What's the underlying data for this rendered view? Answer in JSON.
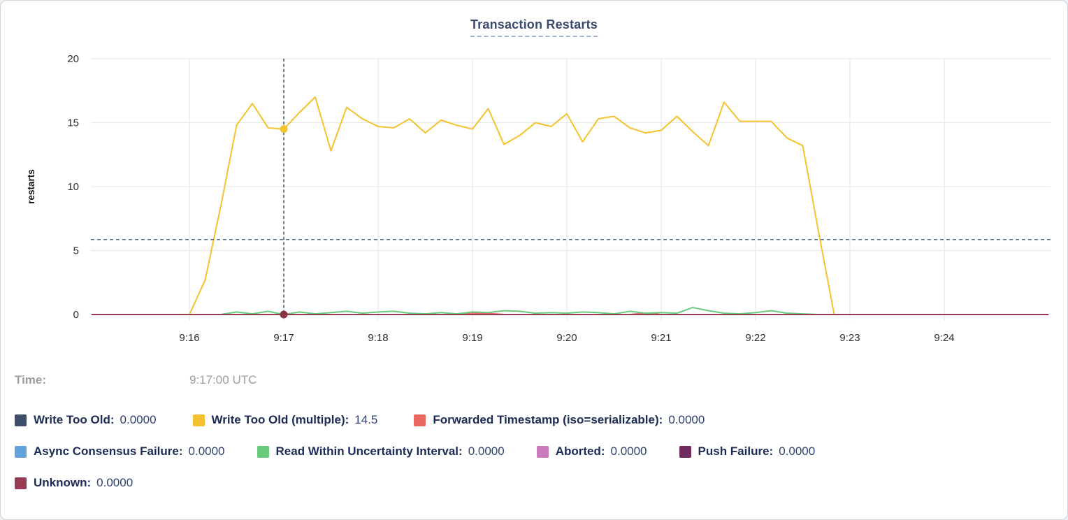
{
  "title": "Transaction Restarts",
  "chart_data": {
    "type": "line",
    "title": "Transaction Restarts",
    "xlabel": "",
    "ylabel": "restarts",
    "ylim": [
      0,
      20
    ],
    "y_ticks": [
      0,
      5,
      10,
      15,
      20
    ],
    "x_ticks": [
      "9:16",
      "9:17",
      "9:18",
      "9:19",
      "9:20",
      "9:21",
      "9:22",
      "9:23",
      "9:24"
    ],
    "x_range": [
      "9:14:58",
      "9:25:06"
    ],
    "grid": true,
    "legend_position": "bottom",
    "series": [
      {
        "name": "Write Too Old",
        "color": "#3e4f6b",
        "x": [
          "9:16:00",
          "9:22:50"
        ],
        "values": [
          0,
          0
        ]
      },
      {
        "name": "Write Too Old (multiple)",
        "color": "#f4c22d",
        "x": [
          "9:16:00",
          "9:16:10",
          "9:16:20",
          "9:16:30",
          "9:16:40",
          "9:16:50",
          "9:17:00",
          "9:17:10",
          "9:17:20",
          "9:17:30",
          "9:17:40",
          "9:17:50",
          "9:18:00",
          "9:18:10",
          "9:18:20",
          "9:18:30",
          "9:18:40",
          "9:18:50",
          "9:19:00",
          "9:19:10",
          "9:19:20",
          "9:19:30",
          "9:19:40",
          "9:19:50",
          "9:20:00",
          "9:20:10",
          "9:20:20",
          "9:20:30",
          "9:20:40",
          "9:20:50",
          "9:21:00",
          "9:21:10",
          "9:21:20",
          "9:21:30",
          "9:21:40",
          "9:21:50",
          "9:22:00",
          "9:22:10",
          "9:22:20",
          "9:22:30",
          "9:22:40",
          "9:22:50"
        ],
        "values": [
          0,
          2.7,
          8.5,
          14.8,
          16.5,
          14.6,
          14.5,
          15.8,
          17.0,
          12.8,
          16.2,
          15.3,
          14.7,
          14.6,
          15.3,
          14.2,
          15.2,
          14.8,
          14.5,
          16.1,
          13.3,
          14.0,
          15.0,
          14.7,
          15.7,
          13.5,
          15.3,
          15.5,
          14.6,
          14.2,
          14.4,
          15.5,
          14.3,
          13.2,
          16.6,
          15.1,
          15.1,
          15.1,
          13.8,
          13.2,
          6.5,
          0
        ]
      },
      {
        "name": "Forwarded Timestamp (iso=serializable)",
        "color": "#e8695f",
        "x": [
          "9:16:00",
          "9:18:50",
          "9:19:00",
          "9:19:10",
          "9:19:20",
          "9:20:40",
          "9:20:50",
          "9:21:00",
          "9:22:50"
        ],
        "values": [
          0,
          0,
          0.12,
          0.08,
          0,
          0,
          0.1,
          0,
          0
        ]
      },
      {
        "name": "Async Consensus Failure",
        "color": "#62a3db",
        "x": [
          "9:16:00",
          "9:22:50"
        ],
        "values": [
          0,
          0
        ]
      },
      {
        "name": "Read Within Uncertainty Interval",
        "color": "#68ca7b",
        "x": [
          "9:16:20",
          "9:16:30",
          "9:16:40",
          "9:16:50",
          "9:17:00",
          "9:17:10",
          "9:17:20",
          "9:17:30",
          "9:17:40",
          "9:17:50",
          "9:18:00",
          "9:18:10",
          "9:18:20",
          "9:18:30",
          "9:18:40",
          "9:18:50",
          "9:19:00",
          "9:19:10",
          "9:19:20",
          "9:19:30",
          "9:19:40",
          "9:19:50",
          "9:20:00",
          "9:20:10",
          "9:20:20",
          "9:20:30",
          "9:20:40",
          "9:20:50",
          "9:21:00",
          "9:21:10",
          "9:21:20",
          "9:21:30",
          "9:21:40",
          "9:21:50",
          "9:22:00",
          "9:22:10",
          "9:22:20",
          "9:22:30",
          "9:22:40"
        ],
        "values": [
          0,
          0.2,
          0.05,
          0.25,
          0,
          0.2,
          0.05,
          0.15,
          0.25,
          0.1,
          0.2,
          0.25,
          0.1,
          0.05,
          0.15,
          0.05,
          0.2,
          0.15,
          0.3,
          0.25,
          0.1,
          0.15,
          0.1,
          0.2,
          0.15,
          0.05,
          0.25,
          0.1,
          0.15,
          0.1,
          0.55,
          0.3,
          0.1,
          0.05,
          0.15,
          0.3,
          0.1,
          0.05,
          0
        ]
      },
      {
        "name": "Aborted",
        "color": "#cb7bbd",
        "x": [
          "9:16:00",
          "9:22:50"
        ],
        "values": [
          0,
          0
        ]
      },
      {
        "name": "Push Failure",
        "color": "#6f2b5e",
        "x": [
          "9:16:00",
          "9:22:50"
        ],
        "values": [
          0,
          0
        ]
      },
      {
        "name": "Unknown",
        "color": "#9a3b54",
        "x": [
          "9:14:58",
          "9:25:06"
        ],
        "values": [
          0,
          0
        ]
      }
    ],
    "crosshair": {
      "time": "9:17:00",
      "hline_value": 5.86,
      "points": [
        {
          "time": "9:17:00",
          "value": 14.5,
          "color": "#f4c22d"
        },
        {
          "time": "9:17:00",
          "value": 0,
          "color": "#8c3146"
        }
      ]
    }
  },
  "tooltip": {
    "time_label": "Time:",
    "time_value": "9:17:00 UTC",
    "rows": [
      [
        {
          "label": "Write Too Old:",
          "value": "0.0000",
          "color": "#3e4f6b"
        },
        {
          "label": "Write Too Old (multiple):",
          "value": "14.5",
          "color": "#f4c22d"
        },
        {
          "label": "Forwarded Timestamp (iso=serializable):",
          "value": "0.0000",
          "color": "#e8695f"
        }
      ],
      [
        {
          "label": "Async Consensus Failure:",
          "value": "0.0000",
          "color": "#62a3db"
        },
        {
          "label": "Read Within Uncertainty Interval:",
          "value": "0.0000",
          "color": "#68ca7b"
        },
        {
          "label": "Aborted:",
          "value": "0.0000",
          "color": "#cb7bbd"
        },
        {
          "label": "Push Failure:",
          "value": "0.0000",
          "color": "#6f2b5e"
        }
      ],
      [
        {
          "label": "Unknown:",
          "value": "0.0000",
          "color": "#9a3b54"
        }
      ]
    ]
  },
  "colors": {
    "grid": "#e9e9e9",
    "crosshair_v": "#3b5166",
    "crosshair_h": "#5a758f",
    "title": "#394a6d"
  }
}
